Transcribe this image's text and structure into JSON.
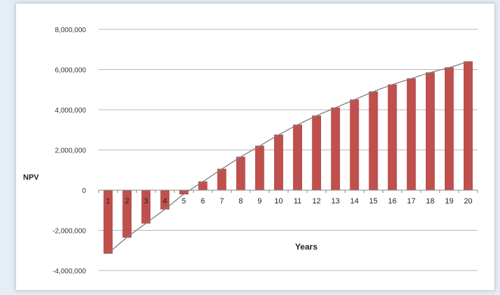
{
  "chart_data": {
    "type": "bar",
    "title": "",
    "xlabel": "Years",
    "ylabel": "NPV",
    "ylim": [
      -4000000,
      8000000
    ],
    "yticks": [
      8000000,
      6000000,
      4000000,
      2000000,
      0,
      -2000000,
      -4000000
    ],
    "ytick_labels": [
      "8,000,000",
      "6,000,000",
      "4,000,000",
      "2,000,000",
      "0",
      "-2,000,000",
      "-4,000,000"
    ],
    "categories": [
      "1",
      "2",
      "3",
      "4",
      "5",
      "6",
      "7",
      "8",
      "9",
      "10",
      "11",
      "12",
      "13",
      "14",
      "15",
      "16",
      "17",
      "18",
      "19",
      "20"
    ],
    "values": [
      -3150000,
      -2350000,
      -1650000,
      -950000,
      -200000,
      420000,
      1050000,
      1650000,
      2200000,
      2750000,
      3250000,
      3700000,
      4100000,
      4500000,
      4900000,
      5250000,
      5550000,
      5850000,
      6100000,
      6400000
    ],
    "trendline": true,
    "grid": "horizontal",
    "legend": "none",
    "colors": {
      "bar": "#c0504d",
      "bar_edge": "#a33d3a",
      "trendline": "#7f7f7f",
      "gridline": "#b8b8b8"
    }
  }
}
